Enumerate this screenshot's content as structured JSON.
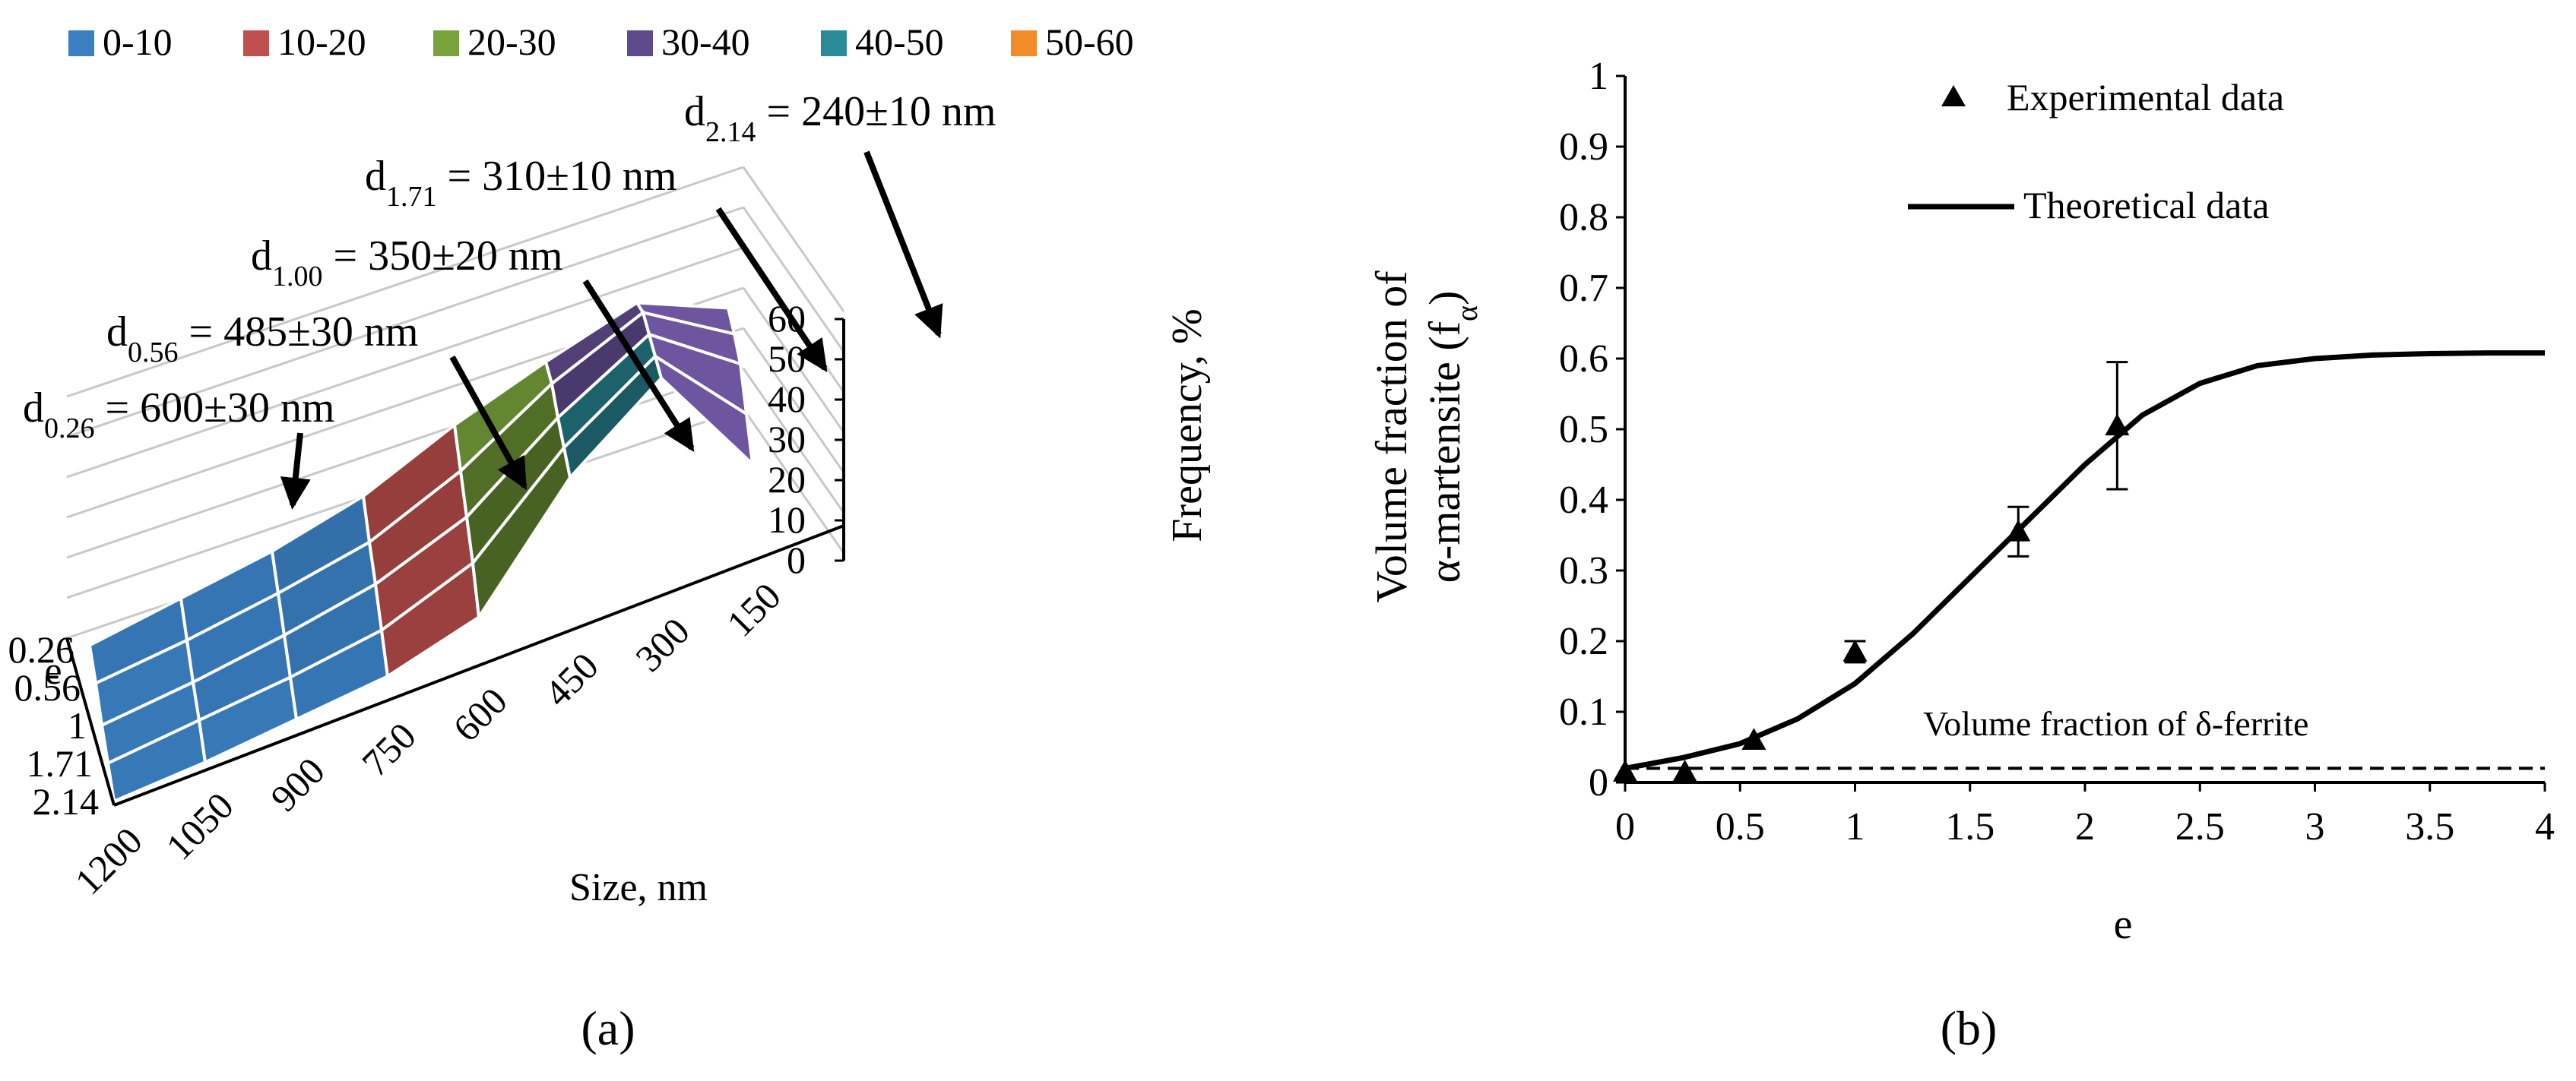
{
  "colors": {
    "bin_0_10": "#3a7fc1",
    "bin_10_20": "#c0504d",
    "bin_20_30": "#78a33a",
    "bin_30_40": "#5f4a8b",
    "bin_40_50": "#2a8a98",
    "bin_50_60": "#f28c28",
    "line": "#000000",
    "grid": "#c8c8c8"
  },
  "panels": {
    "a": {
      "label": "(a)"
    },
    "b": {
      "label": "(b)"
    }
  },
  "chart_data": [
    {
      "type": "surface",
      "panel": "a",
      "legend": {
        "entries": [
          "0-10",
          "10-20",
          "20-30",
          "30-40",
          "40-50",
          "50-60"
        ],
        "placement": "top"
      },
      "x_label": "Size, nm",
      "x_ticks": [
        "1200",
        "1050",
        "900",
        "750",
        "600",
        "450",
        "300",
        "150"
      ],
      "y_label": "e",
      "y_ticks": [
        "0.26",
        "0.56",
        "1",
        "1.71",
        "2.14"
      ],
      "z_label": "Frequency, %",
      "z_ticks": [
        "0",
        "10",
        "20",
        "30",
        "40",
        "50",
        "60"
      ],
      "z_range": [
        0,
        60
      ],
      "surface": {
        "rows": [
          "0.26",
          "0.56",
          "1",
          "1.71",
          "2.14"
        ],
        "cols": [
          "1200",
          "1050",
          "900",
          "750",
          "600",
          "450",
          "300",
          "150"
        ],
        "values": [
          [
            2,
            5,
            8,
            13,
            22,
            29,
            35,
            25
          ],
          [
            2,
            4,
            7,
            11,
            20,
            33,
            42,
            28
          ],
          [
            1,
            3,
            6,
            10,
            18,
            34,
            46,
            30
          ],
          [
            1,
            3,
            5,
            8,
            16,
            36,
            50,
            27
          ],
          [
            1,
            2,
            4,
            6,
            12,
            38,
            54,
            24
          ]
        ]
      },
      "annotations": [
        {
          "prefix": "d",
          "sub": "2.14",
          "text": " = 240±10 nm"
        },
        {
          "prefix": "d",
          "sub": "1.71",
          "text": " = 310±10 nm"
        },
        {
          "prefix": "d",
          "sub": "1.00",
          "text": " = 350±20 nm"
        },
        {
          "prefix": "d",
          "sub": "0.56",
          "text": " = 485±30 nm"
        },
        {
          "prefix": "d",
          "sub": "0.26",
          "text": " = 600±30 nm"
        }
      ]
    },
    {
      "type": "line+scatter",
      "panel": "b",
      "xlabel": "e",
      "ylabel_line1": "Volume fraction of",
      "ylabel_line2": "α-martensite (f",
      "ylabel_sub": "α",
      "ylabel_close": ")",
      "xlim": [
        0,
        4
      ],
      "ylim": [
        0,
        1
      ],
      "x_ticks": [
        0,
        0.5,
        1,
        1.5,
        2,
        2.5,
        3,
        3.5,
        4
      ],
      "y_ticks": [
        0,
        0.1,
        0.2,
        0.3,
        0.4,
        0.5,
        0.6,
        0.7,
        0.8,
        0.9,
        1
      ],
      "x_tick_labels": [
        "0",
        "0.5",
        "1",
        "1.5",
        "2",
        "2.5",
        "3",
        "3.5",
        "4"
      ],
      "y_tick_labels": [
        "0",
        "0.1",
        "0.2",
        "0.3",
        "0.4",
        "0.5",
        "0.6",
        "0.7",
        "0.8",
        "0.9",
        "1"
      ],
      "experimental": {
        "name": "Experimental data",
        "x": [
          0,
          0.26,
          0.56,
          1.0,
          1.71,
          2.14
        ],
        "y": [
          0.015,
          0.015,
          0.06,
          0.185,
          0.355,
          0.505
        ],
        "err": [
          0,
          0,
          0,
          0.015,
          0.035,
          0.09
        ]
      },
      "theoretical": {
        "name": "Theoretical data",
        "x": [
          0,
          0.25,
          0.5,
          0.75,
          1.0,
          1.25,
          1.5,
          1.75,
          2.0,
          2.25,
          2.5,
          2.75,
          3.0,
          3.25,
          3.5,
          3.75,
          4.0
        ],
        "y": [
          0.02,
          0.035,
          0.055,
          0.09,
          0.14,
          0.21,
          0.29,
          0.37,
          0.45,
          0.52,
          0.565,
          0.59,
          0.6,
          0.605,
          0.607,
          0.608,
          0.608
        ]
      },
      "ferrite": {
        "label": "Volume fraction of δ-ferrite",
        "y": 0.02
      }
    }
  ]
}
